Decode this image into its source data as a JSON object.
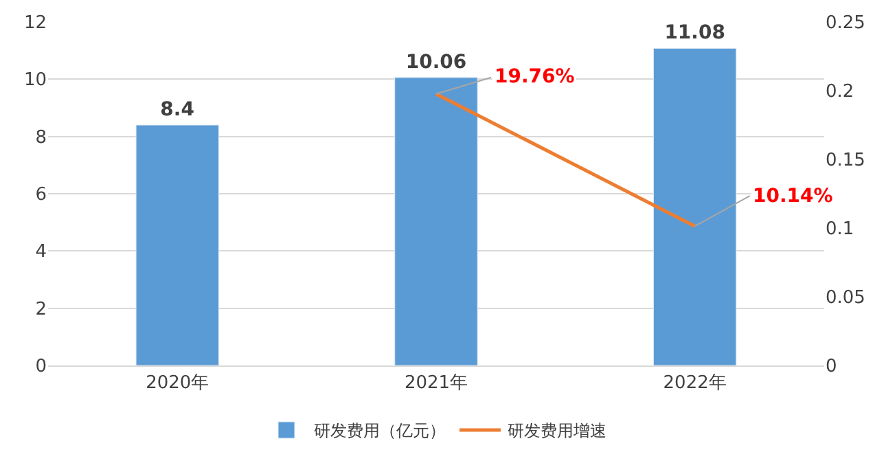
{
  "chart_data": {
    "type": "bar",
    "categories": [
      "2020年",
      "2021年",
      "2022年"
    ],
    "series": [
      {
        "name": "研发费用（亿元）",
        "color": "#5b9bd5",
        "values": [
          8.4,
          10.06,
          11.08
        ],
        "value_labels": [
          "8.4",
          "10.06",
          "11.08"
        ]
      },
      {
        "name": "研发费用增速",
        "type": "line",
        "axis": "y2",
        "color": "#ed7d31",
        "values": [
          null,
          0.1976,
          0.1014
        ],
        "value_labels": [
          null,
          "19.76%",
          "10.14%"
        ]
      }
    ],
    "ylim": [
      0,
      12
    ],
    "yticks": [
      0,
      2,
      4,
      6,
      8,
      10,
      12
    ],
    "y2lim": [
      0,
      0.25
    ],
    "y2ticks": [
      0,
      0.05,
      0.1,
      0.15,
      0.2,
      0.25
    ],
    "grid": "y",
    "legend": "bottom",
    "marker": "none",
    "line_style": "solid"
  }
}
